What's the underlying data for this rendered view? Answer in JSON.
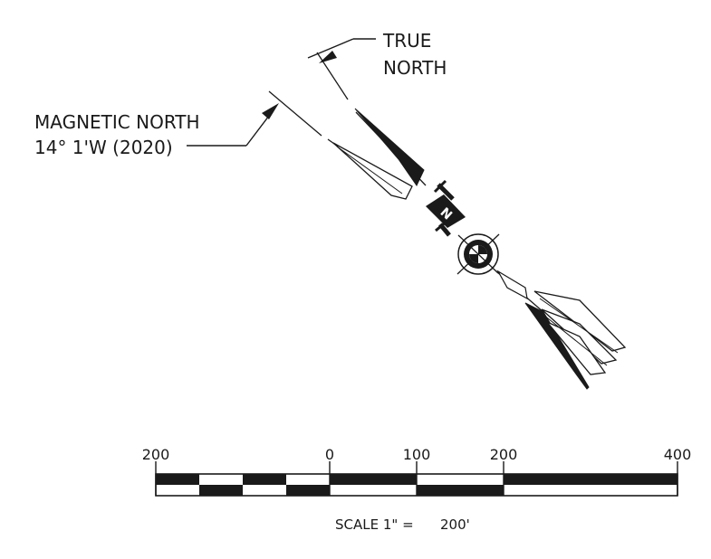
{
  "true_north": {
    "line1": "TRUE",
    "line2": "NORTH"
  },
  "magnetic_north": {
    "line1": "MAGNETIC NORTH",
    "line2": "14° 1'W (2020)"
  },
  "north_letter": "N",
  "scale_bar": {
    "ticks": [
      "200",
      "0",
      "100",
      "200",
      "400"
    ],
    "caption_prefix": "SCALE 1\" =",
    "caption_value": "200'"
  },
  "colors": {
    "ink": "#1a1a1a",
    "paper": "#ffffff"
  }
}
